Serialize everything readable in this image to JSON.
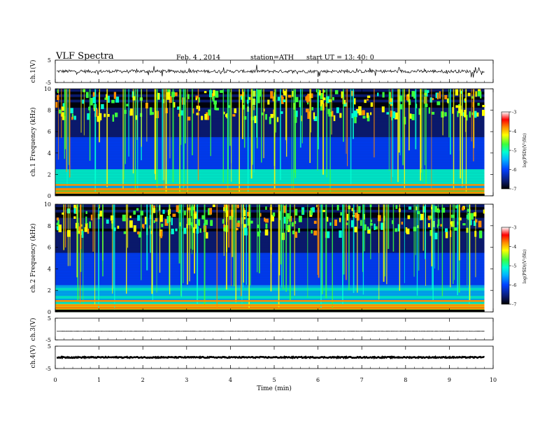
{
  "header": {
    "title": "VLF  Spectra",
    "date": "Feb. 4  , 2014",
    "station": "station=ATH",
    "start": "start  UT  =   13: 40: 0"
  },
  "colors": {
    "colormap": [
      "#000000",
      "#0a1a6e",
      "#0040ff",
      "#00b4ff",
      "#00ffd2",
      "#3cff3c",
      "#ffff00",
      "#ff8c00",
      "#ff0000",
      "#ffffff"
    ],
    "trace": "#000000",
    "frame": "#000000"
  },
  "chart_data": [
    {
      "type": "line",
      "panel": "ch1",
      "ylabel": "ch.1(V)",
      "ylim": [
        -5,
        5
      ],
      "yticks": [
        "5",
        "-5"
      ],
      "signal": "broadband noise trace near 0 V with short spikes"
    },
    {
      "type": "heatmap",
      "panel": "ch1-spectrogram",
      "ylabel": "ch.1 Frequency  (kHz)",
      "ylim": [
        0,
        10
      ],
      "yticks": [
        "0",
        "2",
        "4",
        "6",
        "8",
        "10"
      ],
      "colorbar": {
        "label": "log(PSD)(V²/Hz)",
        "ticks": [
          "-3",
          "-4",
          "-5",
          "-6",
          "-7"
        ],
        "range": [
          -7,
          -3
        ]
      }
    },
    {
      "type": "heatmap",
      "panel": "ch2-spectrogram",
      "ylabel": "ch.2 Frequency  (kHz)",
      "ylim": [
        0,
        10
      ],
      "yticks": [
        "0",
        "2",
        "4",
        "6",
        "8",
        "10"
      ],
      "colorbar": {
        "label": "log(PSD)(V²/Hz)",
        "ticks": [
          "-3",
          "-4",
          "-5",
          "-6",
          "-7"
        ],
        "range": [
          -7,
          -3
        ]
      }
    },
    {
      "type": "line",
      "panel": "ch3",
      "ylabel": "ch.3(V)",
      "ylim": [
        -5,
        5
      ],
      "yticks": [
        "5",
        "-5"
      ],
      "signal": "flat trace near -1 V"
    },
    {
      "type": "line",
      "panel": "ch4",
      "ylabel": "ch.4(V)",
      "ylim": [
        -5,
        5
      ],
      "yticks": [
        "5",
        "-5"
      ],
      "signal": "thick band near 0 V"
    }
  ],
  "xaxis": {
    "label": "Time  (min)",
    "xlim": [
      0,
      10
    ],
    "data_end": 9.8,
    "ticks": [
      "0",
      "1",
      "2",
      "3",
      "4",
      "5",
      "6",
      "7",
      "8",
      "9",
      "10"
    ]
  }
}
